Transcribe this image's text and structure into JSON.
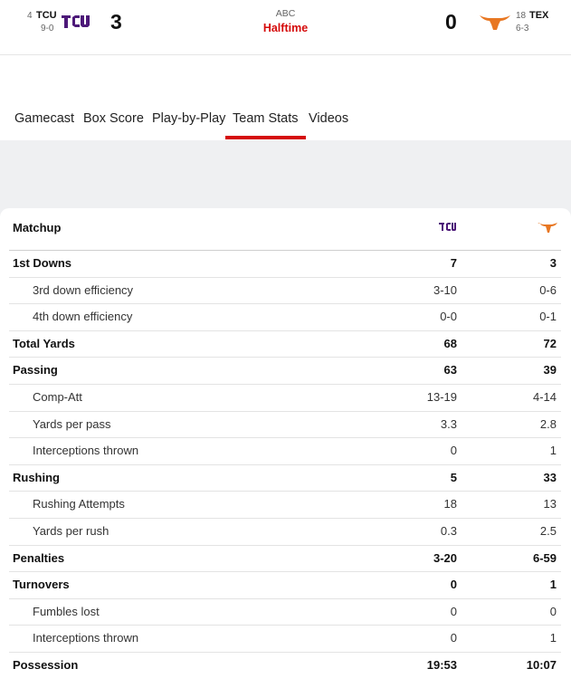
{
  "header": {
    "away": {
      "rank": "4",
      "abbr": "TCU",
      "record": "9-0",
      "score": "3"
    },
    "network": "ABC",
    "status": "Halftime",
    "home": {
      "rank": "18",
      "abbr": "TEX",
      "record": "6-3",
      "score": "0"
    }
  },
  "tabs": [
    "Gamecast",
    "Box Score",
    "Play-by-Play",
    "Team Stats",
    "Videos"
  ],
  "active_tab": 3,
  "table": {
    "title": "Matchup",
    "rows": [
      {
        "label": "1st Downs",
        "away": "7",
        "home": "3",
        "main": true
      },
      {
        "label": "3rd down efficiency",
        "away": "3-10",
        "home": "0-6",
        "main": false
      },
      {
        "label": "4th down efficiency",
        "away": "0-0",
        "home": "0-1",
        "main": false
      },
      {
        "label": "Total Yards",
        "away": "68",
        "home": "72",
        "main": true
      },
      {
        "label": "Passing",
        "away": "63",
        "home": "39",
        "main": true
      },
      {
        "label": "Comp-Att",
        "away": "13-19",
        "home": "4-14",
        "main": false
      },
      {
        "label": "Yards per pass",
        "away": "3.3",
        "home": "2.8",
        "main": false
      },
      {
        "label": "Interceptions thrown",
        "away": "0",
        "home": "1",
        "main": false
      },
      {
        "label": "Rushing",
        "away": "5",
        "home": "33",
        "main": true
      },
      {
        "label": "Rushing Attempts",
        "away": "18",
        "home": "13",
        "main": false
      },
      {
        "label": "Yards per rush",
        "away": "0.3",
        "home": "2.5",
        "main": false
      },
      {
        "label": "Penalties",
        "away": "3-20",
        "home": "6-59",
        "main": true
      },
      {
        "label": "Turnovers",
        "away": "0",
        "home": "1",
        "main": true
      },
      {
        "label": "Fumbles lost",
        "away": "0",
        "home": "0",
        "main": false
      },
      {
        "label": "Interceptions thrown",
        "away": "0",
        "home": "1",
        "main": false
      },
      {
        "label": "Possession",
        "away": "19:53",
        "home": "10:07",
        "main": true
      }
    ]
  }
}
